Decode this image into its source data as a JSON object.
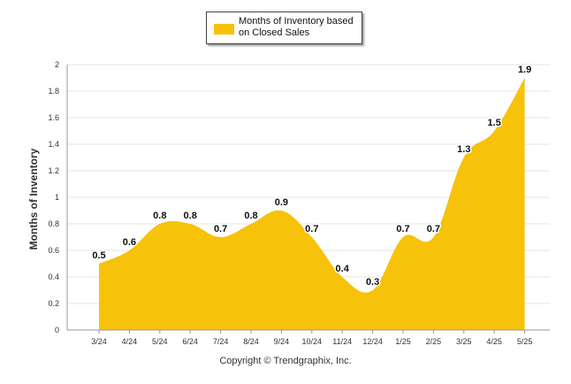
{
  "chart_data": {
    "type": "area",
    "categories": [
      "3/24",
      "4/24",
      "5/24",
      "6/24",
      "7/24",
      "8/24",
      "9/24",
      "10/24",
      "11/24",
      "12/24",
      "1/25",
      "2/25",
      "3/25",
      "4/25",
      "5/25"
    ],
    "series": [
      {
        "name": "Months of Inventory based on Closed Sales",
        "values": [
          0.5,
          0.6,
          0.8,
          0.8,
          0.7,
          0.8,
          0.9,
          0.7,
          0.4,
          0.3,
          0.7,
          0.7,
          1.3,
          1.5,
          1.9
        ]
      }
    ],
    "ylabel": "Months of Inventory",
    "xlabel": "",
    "ylim": [
      0,
      2
    ],
    "yticks": [
      "0",
      "0.2",
      "0.4",
      "0.6",
      "0.8",
      "1",
      "1.2",
      "1.4",
      "1.6",
      "1.8",
      "2"
    ],
    "grid": true,
    "legend_position": "top-center",
    "color": "#F7C20A",
    "footer": "Copyright © Trendgraphix, Inc."
  }
}
